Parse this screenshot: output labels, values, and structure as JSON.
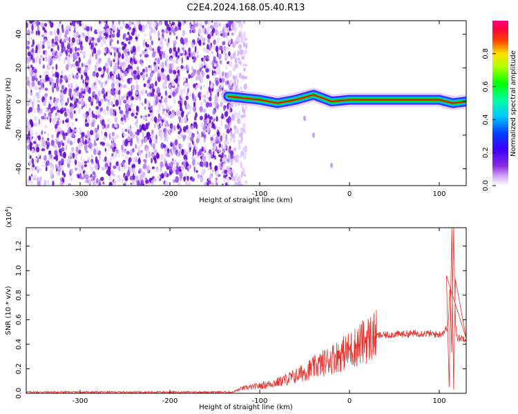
{
  "title": "C2E4.2024.168.05.40.R13",
  "chart_data": [
    {
      "type": "heatmap",
      "xlabel": "Height of straight line (km)",
      "ylabel": "Frequency (Hz)",
      "xlim": [
        -360,
        130
      ],
      "ylim": [
        -50,
        48
      ],
      "xticks": [
        -300,
        -200,
        -100,
        0,
        100
      ],
      "yticks": [
        -40,
        -20,
        0,
        20,
        40
      ],
      "colorbar": {
        "label": "Normalized spectral amplitude",
        "range": [
          0,
          1
        ],
        "ticks": [
          "0.0",
          "0.2",
          "0.4",
          "0.6",
          "0.8"
        ],
        "colormap": "white-purple-blue-cyan-green-yellow-red-magenta"
      },
      "features": [
        {
          "description": "broadband noise region",
          "x_range": [
            -360,
            -130
          ],
          "y_range": [
            -50,
            48
          ],
          "amplitude": 0.1
        },
        {
          "description": "signal ridge",
          "x": [
            -135,
            -100,
            -80,
            -60,
            -40,
            -20,
            0,
            50,
            100,
            115,
            130
          ],
          "y": [
            3,
            1,
            -1,
            1,
            4,
            0,
            1,
            1,
            1,
            -1,
            0
          ]
        },
        {
          "description": "faint diagonal trace",
          "x": [
            -50,
            -40,
            -20
          ],
          "y": [
            -10,
            -20,
            -38
          ]
        }
      ],
      "colors": {
        "noise": "#6a0dd9",
        "ridge_core": "#ff0000",
        "ridge_mid": "#00e000",
        "ridge_edge": "#00bfff",
        "ridge_outer": "#2020ff"
      }
    },
    {
      "type": "line",
      "xlabel": "Height of straight line (km)",
      "ylabel": "SNR (10 * v/v)",
      "y_exponent": "(x10",
      "y_exponent_power": "4",
      "y_exponent_close": ")",
      "xlim": [
        -360,
        130
      ],
      "ylim": [
        0,
        1.35
      ],
      "xticks": [
        -300,
        -200,
        -100,
        0,
        100
      ],
      "yticks": [
        "0.0",
        "0.2",
        "0.4",
        "0.6",
        "0.8",
        "1.0",
        "1.2"
      ],
      "series": [
        {
          "color": "#e8302a",
          "x": [
            -360,
            -300,
            -200,
            -130,
            -120,
            -100,
            -80,
            -60,
            -40,
            -20,
            0,
            20,
            30,
            50,
            80,
            100,
            105,
            110,
            112,
            114,
            116,
            118,
            120,
            130
          ],
          "y": [
            0.01,
            0.01,
            0.01,
            0.01,
            0.04,
            0.06,
            0.09,
            0.14,
            0.21,
            0.28,
            0.35,
            0.44,
            0.47,
            0.48,
            0.49,
            0.48,
            0.5,
            0.55,
            0.9,
            0.3,
            1.35,
            0.6,
            0.45,
            0.45
          ],
          "peak_excursions": [
            {
              "x": 108,
              "y": 0.96
            },
            {
              "x": 111,
              "y": 0.05
            },
            {
              "x": 114,
              "y": 1.35
            },
            {
              "x": 116,
              "y": 0.03
            },
            {
              "x": 118,
              "y": 0.93
            }
          ]
        }
      ]
    }
  ]
}
